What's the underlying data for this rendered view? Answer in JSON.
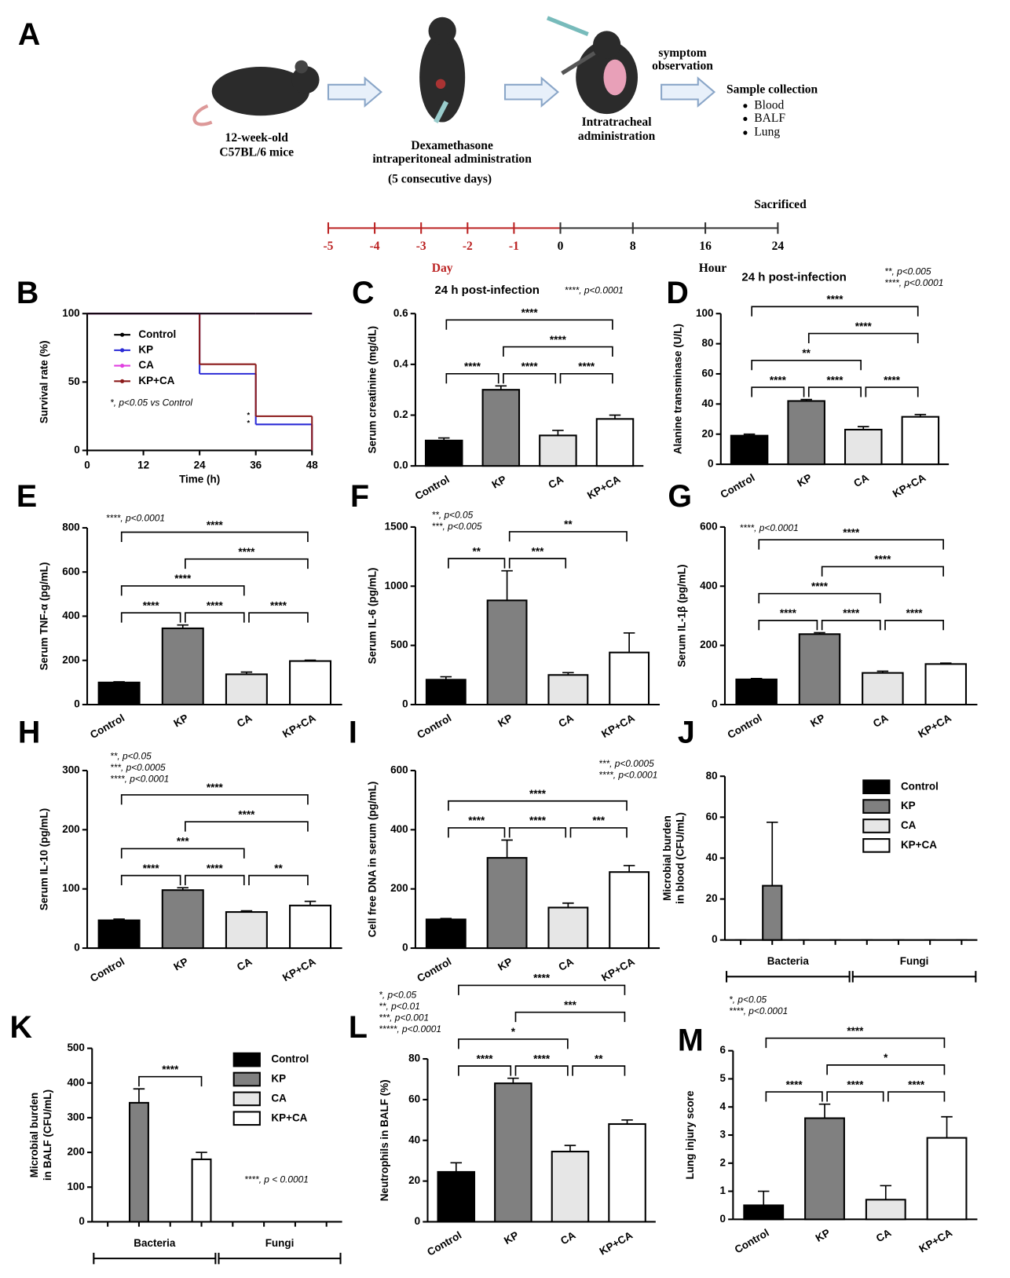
{
  "diagram": {
    "panel": "A",
    "mice": [
      "12-week-old",
      "C57BL/6 mice"
    ],
    "dexamethasone": [
      "Dexamethasone",
      "intraperitoneal administration",
      "(5 consecutive days)"
    ],
    "intratracheal": [
      "Intratracheal",
      "administration"
    ],
    "observation": [
      "symptom",
      "observation"
    ],
    "sample_collection": "Sample collection",
    "samples": [
      "Blood",
      "BALF",
      "Lung"
    ],
    "day_ticks": [
      -5,
      -4,
      -3,
      -2,
      -1
    ],
    "hour_ticks": [
      0,
      8,
      16,
      24
    ],
    "day_label": "Day",
    "hour_label": "Hour",
    "sacrificed": "Sacrificed"
  },
  "chart_data": [
    {
      "type": "survival",
      "panel": "B",
      "xlabel": "Time (h)",
      "ylabel": "Survival rate (%)",
      "x": [
        0,
        24,
        36,
        48
      ],
      "xlim": [
        0,
        48
      ],
      "xticks": [
        0,
        12,
        24,
        36,
        48
      ],
      "ylim": [
        0,
        100
      ],
      "yticks": [
        0,
        50,
        100
      ],
      "series": [
        {
          "name": "Control",
          "color": "#000000",
          "values": [
            100,
            100,
            100,
            100
          ]
        },
        {
          "name": "KP",
          "color": "#2b2bd6",
          "values": [
            100,
            56,
            19,
            0
          ]
        },
        {
          "name": "CA",
          "color": "#e040e0",
          "values": [
            100,
            100,
            100,
            100
          ]
        },
        {
          "name": "KP+CA",
          "color": "#8b1a1a",
          "values": [
            100,
            63,
            25,
            0
          ]
        }
      ],
      "notes": [
        "*, p<0.05 vs Control"
      ],
      "annotations": [
        "*",
        "*"
      ]
    },
    {
      "type": "bar",
      "panel": "C",
      "title": "24 h post-infection",
      "notes": [
        "****, p<0.0001"
      ],
      "ylabel": "Serum creatinine (mg/dL)",
      "categories": [
        "Control",
        "KP",
        "CA",
        "KP+CA"
      ],
      "colors": [
        "#000000",
        "#808080",
        "#e6e6e6",
        "#ffffff"
      ],
      "values": [
        0.1,
        0.3,
        0.12,
        0.185
      ],
      "errors": [
        0.01,
        0.015,
        0.02,
        0.015
      ],
      "ylim": [
        0,
        0.6
      ],
      "yticks": [
        {
          "value": 0,
          "label": "0.0"
        },
        {
          "value": 0.2,
          "label": "0.2"
        },
        {
          "value": 0.4,
          "label": "0.4"
        },
        {
          "value": 0.6,
          "label": "0.6"
        }
      ],
      "brackets": [
        {
          "between": [
            "Control",
            "KP"
          ],
          "label": "****"
        },
        {
          "between": [
            "KP",
            "CA"
          ],
          "label": "****"
        },
        {
          "between": [
            "CA",
            "KP+CA"
          ],
          "label": "****"
        },
        {
          "between": [
            "KP",
            "KP+CA"
          ],
          "label": "****"
        },
        {
          "between": [
            "Control",
            "KP+CA"
          ],
          "label": "****"
        }
      ]
    },
    {
      "type": "bar",
      "panel": "D",
      "title": "24 h post-infection",
      "notes": [
        "**, p<0.005",
        "****, p<0.0001"
      ],
      "ylabel": "Alanine transminase (U/L)",
      "categories": [
        "Control",
        "KP",
        "CA",
        "KP+CA"
      ],
      "colors": [
        "#000000",
        "#808080",
        "#e6e6e6",
        "#ffffff"
      ],
      "values": [
        19,
        42,
        23,
        31.5
      ],
      "errors": [
        1,
        1,
        2,
        1.5
      ],
      "ylim": [
        0,
        100
      ],
      "yticks": [
        0,
        20,
        40,
        60,
        80,
        100
      ],
      "brackets": [
        {
          "between": [
            "Control",
            "KP"
          ],
          "label": "****"
        },
        {
          "between": [
            "KP",
            "CA"
          ],
          "label": "****"
        },
        {
          "between": [
            "CA",
            "KP+CA"
          ],
          "label": "****"
        },
        {
          "between": [
            "Control",
            "CA"
          ],
          "label": "**"
        },
        {
          "between": [
            "KP",
            "KP+CA"
          ],
          "label": "****"
        },
        {
          "between": [
            "Control",
            "KP+CA"
          ],
          "label": "****"
        }
      ]
    },
    {
      "type": "bar",
      "panel": "E",
      "notes": [
        "****, p<0.0001"
      ],
      "ylabel": "Serum TNF-α (pg/mL)",
      "categories": [
        "Control",
        "KP",
        "CA",
        "KP+CA"
      ],
      "colors": [
        "#000000",
        "#808080",
        "#e6e6e6",
        "#ffffff"
      ],
      "values": [
        100,
        345,
        137,
        197
      ],
      "errors": [
        3,
        15,
        10,
        4
      ],
      "ylim": [
        0,
        800
      ],
      "yticks": [
        0,
        200,
        400,
        600,
        800
      ],
      "brackets": [
        {
          "between": [
            "Control",
            "KP"
          ],
          "label": "****"
        },
        {
          "between": [
            "KP",
            "CA"
          ],
          "label": "****"
        },
        {
          "between": [
            "CA",
            "KP+CA"
          ],
          "label": "****"
        },
        {
          "between": [
            "Control",
            "CA"
          ],
          "label": "****"
        },
        {
          "between": [
            "KP",
            "KP+CA"
          ],
          "label": "****"
        },
        {
          "between": [
            "Control",
            "KP+CA"
          ],
          "label": "****"
        }
      ]
    },
    {
      "type": "bar",
      "panel": "F",
      "notes": [
        "**, p<0.05",
        "***, p<0.005"
      ],
      "ylabel": "Serum IL-6 (pg/mL)",
      "categories": [
        "Control",
        "KP",
        "CA",
        "KP+CA"
      ],
      "colors": [
        "#000000",
        "#808080",
        "#e6e6e6",
        "#ffffff"
      ],
      "values": [
        210,
        880,
        250,
        440
      ],
      "errors": [
        25,
        250,
        20,
        165
      ],
      "ylim": [
        0,
        1500
      ],
      "yticks": [
        0,
        500,
        1000,
        1500
      ],
      "brackets": [
        {
          "between": [
            "Control",
            "KP"
          ],
          "label": "**"
        },
        {
          "between": [
            "KP",
            "CA"
          ],
          "label": "***"
        },
        {
          "between": [
            "KP",
            "KP+CA"
          ],
          "label": "**"
        }
      ]
    },
    {
      "type": "bar",
      "panel": "G",
      "notes": [
        "****, p<0.0001"
      ],
      "ylabel": "Serum IL-1β (pg/mL)",
      "categories": [
        "Control",
        "KP",
        "CA",
        "KP+CA"
      ],
      "colors": [
        "#000000",
        "#808080",
        "#e6e6e6",
        "#ffffff"
      ],
      "values": [
        85,
        238,
        107,
        137
      ],
      "errors": [
        3,
        5,
        6,
        3
      ],
      "ylim": [
        0,
        600
      ],
      "yticks": [
        0,
        200,
        400,
        600
      ],
      "brackets": [
        {
          "between": [
            "Control",
            "KP"
          ],
          "label": "****"
        },
        {
          "between": [
            "KP",
            "CA"
          ],
          "label": "****"
        },
        {
          "between": [
            "CA",
            "KP+CA"
          ],
          "label": "****"
        },
        {
          "between": [
            "Control",
            "CA"
          ],
          "label": "****"
        },
        {
          "between": [
            "KP",
            "KP+CA"
          ],
          "label": "****"
        },
        {
          "between": [
            "Control",
            "KP+CA"
          ],
          "label": "****"
        }
      ]
    },
    {
      "type": "bar",
      "panel": "H",
      "notes": [
        "**, p<0.05",
        "***, p<0.0005",
        "****, p<0.0001"
      ],
      "ylabel": "Serum IL-10 (pg/mL)",
      "categories": [
        "Control",
        "KP",
        "CA",
        "KP+CA"
      ],
      "colors": [
        "#000000",
        "#808080",
        "#e6e6e6",
        "#ffffff"
      ],
      "values": [
        47,
        98,
        61,
        72
      ],
      "errors": [
        2,
        4,
        2,
        7
      ],
      "ylim": [
        0,
        300
      ],
      "yticks": [
        0,
        100,
        200,
        300
      ],
      "brackets": [
        {
          "between": [
            "Control",
            "KP"
          ],
          "label": "****"
        },
        {
          "between": [
            "KP",
            "CA"
          ],
          "label": "****"
        },
        {
          "between": [
            "CA",
            "KP+CA"
          ],
          "label": "**"
        },
        {
          "between": [
            "Control",
            "CA"
          ],
          "label": "***"
        },
        {
          "between": [
            "KP",
            "KP+CA"
          ],
          "label": "****"
        },
        {
          "between": [
            "Control",
            "KP+CA"
          ],
          "label": "****"
        }
      ]
    },
    {
      "type": "bar",
      "panel": "I",
      "notes": [
        "***, p<0.0005",
        "****, p<0.0001"
      ],
      "ylabel": "Cell free DNA in serum (pg/mL)",
      "categories": [
        "Control",
        "KP",
        "CA",
        "KP+CA"
      ],
      "colors": [
        "#000000",
        "#808080",
        "#e6e6e6",
        "#ffffff"
      ],
      "values": [
        97,
        305,
        137,
        257
      ],
      "errors": [
        3,
        60,
        15,
        22
      ],
      "ylim": [
        0,
        600
      ],
      "yticks": [
        0,
        200,
        400,
        600
      ],
      "brackets": [
        {
          "between": [
            "Control",
            "KP"
          ],
          "label": "****"
        },
        {
          "between": [
            "KP",
            "CA"
          ],
          "label": "****"
        },
        {
          "between": [
            "CA",
            "KP+CA"
          ],
          "label": "***"
        },
        {
          "between": [
            "Control",
            "KP+CA"
          ],
          "label": "****"
        }
      ]
    },
    {
      "type": "grouped",
      "panel": "J",
      "ylabel": [
        "Microbial burden",
        "in blood (CFU/mL)"
      ],
      "groups": [
        "Bacteria",
        "Fungi"
      ],
      "ylim": [
        0,
        80
      ],
      "yticks": [
        0,
        20,
        40,
        60,
        80
      ],
      "series": [
        {
          "name": "Control",
          "color": "#000000",
          "values": [
            0,
            0
          ],
          "errors": [
            0,
            0
          ]
        },
        {
          "name": "KP",
          "color": "#808080",
          "values": [
            26.5,
            0
          ],
          "errors": [
            31,
            0
          ]
        },
        {
          "name": "CA",
          "color": "#e6e6e6",
          "values": [
            0,
            0
          ],
          "errors": [
            0,
            0
          ]
        },
        {
          "name": "KP+CA",
          "color": "#ffffff",
          "values": [
            0,
            0
          ],
          "errors": [
            0,
            0
          ]
        }
      ]
    },
    {
      "type": "grouped",
      "panel": "K",
      "ylabel": [
        "Microbial burden",
        "in BALF (CFU/mL)"
      ],
      "groups": [
        "Bacteria",
        "Fungi"
      ],
      "ylim": [
        0,
        500
      ],
      "yticks": [
        0,
        100,
        200,
        300,
        400,
        500
      ],
      "notes": [
        "****, p < 0.0001"
      ],
      "series": [
        {
          "name": "Control",
          "color": "#000000",
          "values": [
            0,
            0
          ],
          "errors": [
            0,
            0
          ]
        },
        {
          "name": "KP",
          "color": "#808080",
          "values": [
            343,
            0
          ],
          "errors": [
            40,
            0
          ]
        },
        {
          "name": "CA",
          "color": "#e6e6e6",
          "values": [
            0,
            0
          ],
          "errors": [
            0,
            0
          ]
        },
        {
          "name": "KP+CA",
          "color": "#ffffff",
          "values": [
            180,
            0
          ],
          "errors": [
            20,
            0
          ]
        }
      ],
      "brackets": [
        {
          "between": [
            "KP",
            "KP+CA"
          ],
          "label": "****"
        }
      ]
    },
    {
      "type": "bar",
      "panel": "L",
      "notes": [
        "*, p<0.05",
        "**, p<0.01",
        "***, p<0.001",
        "*****, p<0.0001"
      ],
      "ylabel": "Neutrophils in BALF (%)",
      "categories": [
        "Control",
        "KP",
        "CA",
        "KP+CA"
      ],
      "colors": [
        "#000000",
        "#808080",
        "#e6e6e6",
        "#ffffff"
      ],
      "values": [
        24.5,
        68,
        34.5,
        48
      ],
      "errors": [
        4.5,
        2.5,
        3,
        2
      ],
      "ylim": [
        0,
        80
      ],
      "yticks": [
        0,
        20,
        40,
        60,
        80
      ],
      "brackets": [
        {
          "between": [
            "Control",
            "KP"
          ],
          "label": "****"
        },
        {
          "between": [
            "KP",
            "CA"
          ],
          "label": "****"
        },
        {
          "between": [
            "CA",
            "KP+CA"
          ],
          "label": "**"
        },
        {
          "between": [
            "Control",
            "CA"
          ],
          "label": "*"
        },
        {
          "between": [
            "KP",
            "KP+CA"
          ],
          "label": "***"
        },
        {
          "between": [
            "Control",
            "KP+CA"
          ],
          "label": "****"
        }
      ]
    },
    {
      "type": "bar",
      "panel": "M",
      "notes": [
        "*, p<0.05",
        "****, p<0.0001"
      ],
      "ylabel": "Lung injury score",
      "categories": [
        "Control",
        "KP",
        "CA",
        "KP+CA"
      ],
      "colors": [
        "#000000",
        "#808080",
        "#e6e6e6",
        "#ffffff"
      ],
      "values": [
        0.5,
        3.6,
        0.7,
        2.9
      ],
      "errors": [
        0.5,
        0.5,
        0.5,
        0.75
      ],
      "ylim": [
        0,
        6
      ],
      "yticks": [
        0,
        1,
        2,
        3,
        4,
        5,
        6
      ],
      "brackets": [
        {
          "between": [
            "Control",
            "KP"
          ],
          "label": "****"
        },
        {
          "between": [
            "KP",
            "CA"
          ],
          "label": "****"
        },
        {
          "between": [
            "CA",
            "KP+CA"
          ],
          "label": "****"
        },
        {
          "between": [
            "KP",
            "KP+CA"
          ],
          "label": "*"
        },
        {
          "between": [
            "Control",
            "KP+CA"
          ],
          "label": "****"
        }
      ]
    }
  ]
}
